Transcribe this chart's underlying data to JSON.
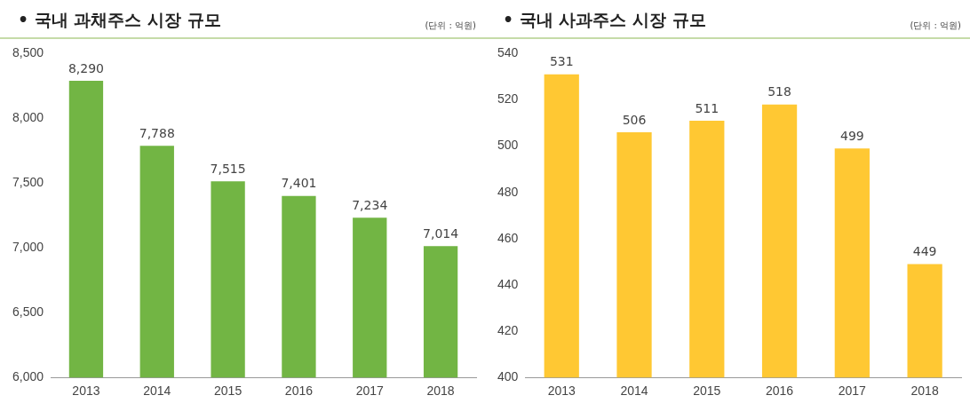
{
  "chart_data": [
    {
      "type": "bar",
      "title": "• 국내 과채주스 시장 규모",
      "subtitle": "(단위 : 억원)",
      "categories": [
        "2013",
        "2014",
        "2015",
        "2016",
        "2017",
        "2018"
      ],
      "values": [
        8290,
        7788,
        7515,
        7401,
        7234,
        7014
      ],
      "value_labels": [
        "8,290",
        "7,788",
        "7,515",
        "7,401",
        "7,234",
        "7,014"
      ],
      "color": "#72b544",
      "ylim": [
        6000,
        8500
      ],
      "yticks": [
        {
          "value": 6000,
          "label": "6,000"
        },
        {
          "value": 6500,
          "label": "6,500"
        },
        {
          "value": 7000,
          "label": "7,000"
        },
        {
          "value": 7500,
          "label": "7,500"
        },
        {
          "value": 8000,
          "label": "8,000"
        },
        {
          "value": 8500,
          "label": "8,500"
        }
      ],
      "grid": false
    },
    {
      "type": "bar",
      "title": "• 국내 사과주스 시장 규모",
      "subtitle": "(단위 : 억원)",
      "categories": [
        "2013",
        "2014",
        "2015",
        "2016",
        "2017",
        "2018"
      ],
      "values": [
        531,
        506,
        511,
        518,
        499,
        449
      ],
      "color": "#ffc833",
      "ylim": [
        400,
        540
      ],
      "yticks": [
        400,
        420,
        440,
        460,
        480,
        500,
        520,
        540
      ],
      "grid": false,
      "data_labels": true
    }
  ]
}
